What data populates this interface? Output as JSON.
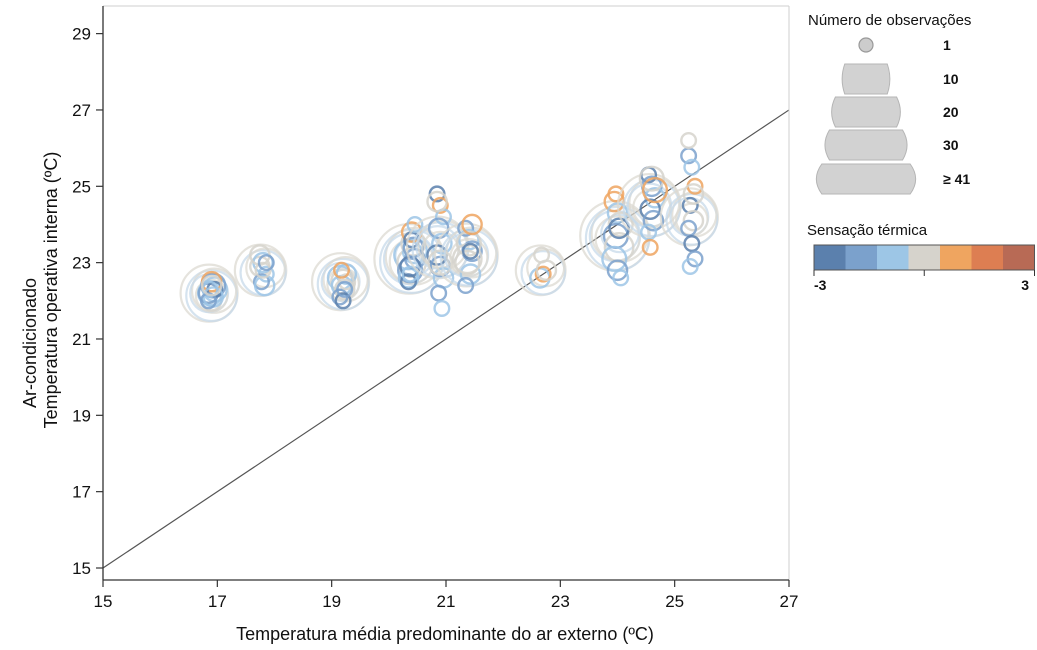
{
  "chart_data": {
    "type": "scatter",
    "xlabel": "Temperatura média predominante do ar externo (ºC)",
    "ylabel_lines": [
      "Ar-condicionado",
      "Temperatura operativa interna (ºC)"
    ],
    "xlim": [
      15,
      27
    ],
    "ylim": [
      15,
      30
    ],
    "xticks": [
      15,
      17,
      19,
      21,
      23,
      25,
      27
    ],
    "yticks": [
      15,
      17,
      19,
      21,
      23,
      25,
      27,
      29
    ],
    "grid": false,
    "reference_line": {
      "from": [
        15,
        15
      ],
      "to": [
        27,
        27
      ]
    },
    "color_scale": {
      "title": "Sensação térmica",
      "min_label": "-3",
      "max_label": "3",
      "colors": [
        "#5b80ad",
        "#7ba1cc",
        "#9dc6e6",
        "#d6d3cc",
        "#efa560",
        "#dd7e52",
        "#b86a55"
      ]
    },
    "size_legend": {
      "title": "Número de observações",
      "entries": [
        "1",
        "10",
        "20",
        "30",
        "≥ 41"
      ]
    },
    "clusters": [
      {
        "x": 16.9,
        "y": 22.2,
        "n": 20,
        "points": [
          {
            "y": 22.2,
            "r": 2,
            "s": 0
          },
          {
            "y": 22.0,
            "r": 2,
            "s": 0
          },
          {
            "y": 22.3,
            "r": 3,
            "s": -1
          },
          {
            "y": 22.2,
            "r": 3,
            "s": -1
          },
          {
            "y": 22.4,
            "r": 3,
            "s": -2
          },
          {
            "y": 22.2,
            "r": 2,
            "s": -2
          },
          {
            "y": 22.5,
            "r": 2,
            "s": 1
          },
          {
            "y": 22.3,
            "r": 1,
            "s": -3
          },
          {
            "y": 22.3,
            "r": 1,
            "s": -1
          },
          {
            "y": 22.1,
            "r": 2,
            "s": -1
          },
          {
            "y": 22.0,
            "r": 1,
            "s": -2
          },
          {
            "y": 22.4,
            "r": 2,
            "s": 0
          }
        ]
      },
      {
        "x": 17.8,
        "y": 22.8,
        "n": 12,
        "points": [
          {
            "y": 22.9,
            "r": 2,
            "s": 0
          },
          {
            "y": 23.0,
            "r": 2,
            "s": -1
          },
          {
            "y": 22.7,
            "r": 1,
            "s": -1
          },
          {
            "y": 22.5,
            "r": 1,
            "s": -2
          },
          {
            "y": 22.4,
            "r": 2,
            "s": -1
          },
          {
            "y": 23.2,
            "r": 2,
            "s": 0
          },
          {
            "y": 22.8,
            "r": 1,
            "s": 0
          },
          {
            "y": 23.0,
            "r": 1,
            "s": -2
          }
        ]
      },
      {
        "x": 19.2,
        "y": 22.5,
        "n": 20,
        "points": [
          {
            "y": 22.6,
            "r": 3,
            "s": -1
          },
          {
            "y": 22.5,
            "r": 3,
            "s": 0
          },
          {
            "y": 22.7,
            "r": 2,
            "s": -1
          },
          {
            "y": 22.4,
            "r": 2,
            "s": -1
          },
          {
            "y": 22.3,
            "r": 2,
            "s": 0
          },
          {
            "y": 22.1,
            "r": 1,
            "s": -2
          },
          {
            "y": 22.0,
            "r": 1,
            "s": -3
          },
          {
            "y": 22.5,
            "r": 1,
            "s": 0
          },
          {
            "y": 22.8,
            "r": 1,
            "s": 1
          },
          {
            "y": 22.3,
            "r": 1,
            "s": -2
          }
        ]
      },
      {
        "x": 20.4,
        "y": 23.1,
        "n": 45,
        "points": [
          {
            "y": 23.2,
            "r": 4,
            "s": -1
          },
          {
            "y": 23.0,
            "r": 4,
            "s": 0
          },
          {
            "y": 23.3,
            "r": 3,
            "s": -1
          },
          {
            "y": 22.8,
            "r": 3,
            "s": -2
          },
          {
            "y": 23.5,
            "r": 3,
            "s": 0
          },
          {
            "y": 22.6,
            "r": 2,
            "s": -1
          },
          {
            "y": 23.8,
            "r": 2,
            "s": 1
          },
          {
            "y": 23.1,
            "r": 2,
            "s": -2
          },
          {
            "y": 22.9,
            "r": 2,
            "s": -3
          },
          {
            "y": 23.4,
            "r": 2,
            "s": -2
          },
          {
            "y": 22.5,
            "r": 1,
            "s": -3
          },
          {
            "y": 23.6,
            "r": 1,
            "s": -3
          },
          {
            "y": 24.0,
            "r": 1,
            "s": -1
          },
          {
            "y": 22.7,
            "r": 1,
            "s": -1
          }
        ]
      },
      {
        "x": 20.9,
        "y": 23.4,
        "n": 28,
        "points": [
          {
            "y": 24.8,
            "r": 1,
            "s": -3
          },
          {
            "y": 24.5,
            "r": 1,
            "s": 1
          },
          {
            "y": 24.2,
            "r": 1,
            "s": -1
          },
          {
            "y": 23.9,
            "r": 2,
            "s": -2
          },
          {
            "y": 23.5,
            "r": 2,
            "s": -1
          },
          {
            "y": 23.2,
            "r": 2,
            "s": -3
          },
          {
            "y": 22.9,
            "r": 2,
            "s": -2
          },
          {
            "y": 22.6,
            "r": 2,
            "s": -1
          },
          {
            "y": 22.2,
            "r": 1,
            "s": -2
          },
          {
            "y": 21.8,
            "r": 1,
            "s": -1
          },
          {
            "y": 24.6,
            "r": 2,
            "s": 0
          },
          {
            "y": 23.0,
            "r": 3,
            "s": 0
          }
        ]
      },
      {
        "x": 21.4,
        "y": 23.2,
        "n": 30,
        "points": [
          {
            "y": 23.9,
            "r": 1,
            "s": -2
          },
          {
            "y": 23.6,
            "r": 2,
            "s": -1
          },
          {
            "y": 23.3,
            "r": 2,
            "s": -2
          },
          {
            "y": 23.0,
            "r": 3,
            "s": 0
          },
          {
            "y": 22.7,
            "r": 2,
            "s": -1
          },
          {
            "y": 22.4,
            "r": 1,
            "s": -2
          },
          {
            "y": 23.5,
            "r": 3,
            "s": 0
          },
          {
            "y": 24.0,
            "r": 2,
            "s": 1
          },
          {
            "y": 23.1,
            "r": 4,
            "s": 0
          },
          {
            "y": 23.3,
            "r": 1,
            "s": -3
          }
        ]
      },
      {
        "x": 22.7,
        "y": 22.8,
        "n": 10,
        "points": [
          {
            "y": 22.6,
            "r": 2,
            "s": -1
          },
          {
            "y": 22.7,
            "r": 1,
            "s": 1
          },
          {
            "y": 22.8,
            "r": 2,
            "s": 0
          },
          {
            "y": 23.2,
            "r": 1,
            "s": 0
          }
        ]
      },
      {
        "x": 24.0,
        "y": 23.7,
        "n": 45,
        "points": [
          {
            "y": 24.6,
            "r": 2,
            "s": 1
          },
          {
            "y": 24.3,
            "r": 2,
            "s": -1
          },
          {
            "y": 24.0,
            "r": 3,
            "s": 0
          },
          {
            "y": 23.7,
            "r": 3,
            "s": -2
          },
          {
            "y": 23.4,
            "r": 4,
            "s": 0
          },
          {
            "y": 23.1,
            "r": 3,
            "s": -1
          },
          {
            "y": 22.8,
            "r": 2,
            "s": -2
          },
          {
            "y": 22.6,
            "r": 1,
            "s": -1
          },
          {
            "y": 24.8,
            "r": 1,
            "s": 1
          },
          {
            "y": 23.9,
            "r": 2,
            "s": -3
          }
        ]
      },
      {
        "x": 24.6,
        "y": 24.5,
        "n": 30,
        "points": [
          {
            "y": 25.3,
            "r": 1,
            "s": -3
          },
          {
            "y": 25.0,
            "r": 2,
            "s": -2
          },
          {
            "y": 24.7,
            "r": 2,
            "s": -1
          },
          {
            "y": 24.4,
            "r": 2,
            "s": -3
          },
          {
            "y": 24.1,
            "r": 2,
            "s": -2
          },
          {
            "y": 23.8,
            "r": 1,
            "s": -1
          },
          {
            "y": 25.2,
            "r": 3,
            "s": 0
          },
          {
            "y": 24.9,
            "r": 3,
            "s": 1
          },
          {
            "y": 23.4,
            "r": 1,
            "s": 1
          }
        ]
      },
      {
        "x": 25.3,
        "y": 24.2,
        "n": 20,
        "points": [
          {
            "y": 25.8,
            "r": 1,
            "s": -2
          },
          {
            "y": 25.5,
            "r": 1,
            "s": -1
          },
          {
            "y": 25.0,
            "r": 1,
            "s": 1
          },
          {
            "y": 24.5,
            "r": 1,
            "s": -3
          },
          {
            "y": 24.1,
            "r": 2,
            "s": 0
          },
          {
            "y": 23.9,
            "r": 1,
            "s": -2
          },
          {
            "y": 23.5,
            "r": 1,
            "s": -3
          },
          {
            "y": 23.1,
            "r": 1,
            "s": -2
          },
          {
            "y": 22.9,
            "r": 1,
            "s": -1
          },
          {
            "y": 24.8,
            "r": 2,
            "s": 0
          },
          {
            "y": 26.2,
            "r": 1,
            "s": 0
          }
        ]
      }
    ]
  }
}
